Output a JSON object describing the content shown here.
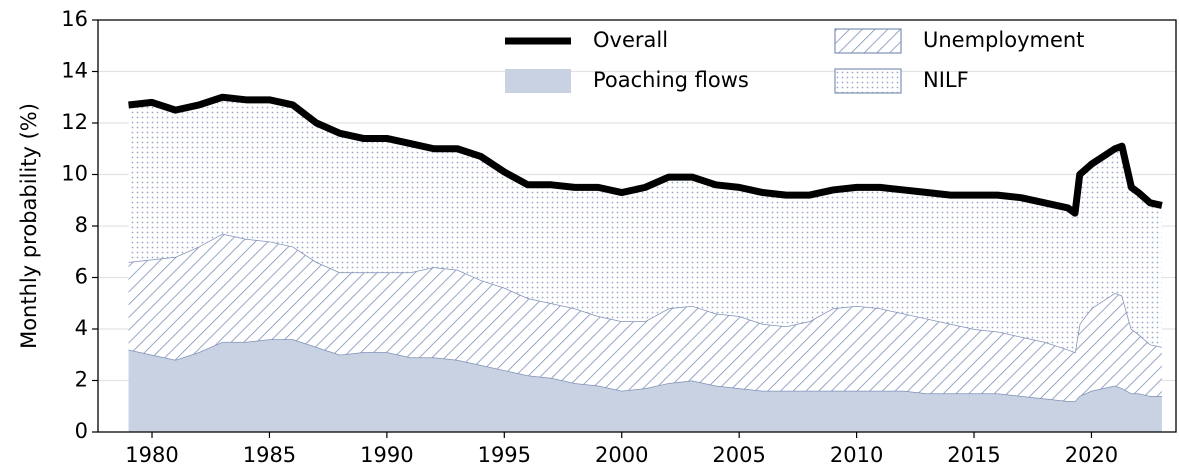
{
  "chart_data": {
    "type": "stacked_area",
    "ylabel": "Monthly probability (%)",
    "x": [
      1979,
      1980,
      1981,
      1982,
      1983,
      1984,
      1985,
      1986,
      1987,
      1988,
      1989,
      1990,
      1991,
      1992,
      1993,
      1994,
      1995,
      1996,
      1997,
      1998,
      1999,
      2000,
      2001,
      2002,
      2003,
      2004,
      2005,
      2006,
      2007,
      2008,
      2009,
      2010,
      2011,
      2012,
      2013,
      2014,
      2015,
      2016,
      2017,
      2018,
      2019,
      2019.3,
      2019.5,
      2020,
      2021,
      2021.3,
      2021.7,
      2022,
      2022.5,
      2023
    ],
    "series": [
      {
        "name": "Poaching flows",
        "color": "#7f91b8",
        "fill": "#c9d2e3",
        "pattern": "solid",
        "values": [
          3.2,
          3.0,
          2.8,
          3.1,
          3.5,
          3.5,
          3.6,
          3.6,
          3.3,
          3.0,
          3.1,
          3.1,
          2.9,
          2.9,
          2.8,
          2.6,
          2.4,
          2.2,
          2.1,
          1.9,
          1.8,
          1.6,
          1.7,
          1.9,
          2.0,
          1.8,
          1.7,
          1.6,
          1.6,
          1.6,
          1.6,
          1.6,
          1.6,
          1.6,
          1.5,
          1.5,
          1.5,
          1.5,
          1.4,
          1.3,
          1.2,
          1.2,
          1.4,
          1.6,
          1.8,
          1.7,
          1.5,
          1.5,
          1.4,
          1.4
        ]
      },
      {
        "name": "Unemployment",
        "color": "#7f91b8",
        "fill": "#ffffff",
        "pattern": "hatch",
        "values": [
          3.4,
          3.7,
          4.0,
          4.1,
          4.2,
          4.0,
          3.8,
          3.6,
          3.3,
          3.2,
          3.1,
          3.1,
          3.3,
          3.5,
          3.5,
          3.3,
          3.2,
          3.0,
          2.9,
          2.9,
          2.7,
          2.7,
          2.6,
          2.9,
          2.9,
          2.8,
          2.8,
          2.6,
          2.5,
          2.7,
          3.2,
          3.3,
          3.2,
          3.0,
          2.9,
          2.7,
          2.5,
          2.4,
          2.3,
          2.2,
          2.0,
          1.9,
          2.8,
          3.2,
          3.6,
          3.6,
          2.5,
          2.3,
          2.0,
          1.9
        ]
      },
      {
        "name": "NILF",
        "color": "#7f91b8",
        "fill": "#ffffff",
        "pattern": "dots",
        "values": [
          6.1,
          6.1,
          5.7,
          5.5,
          5.3,
          5.4,
          5.5,
          5.5,
          5.4,
          5.4,
          5.2,
          5.2,
          5.0,
          4.6,
          4.7,
          4.8,
          4.5,
          4.4,
          4.6,
          4.7,
          5.0,
          5.0,
          5.2,
          5.1,
          5.0,
          5.0,
          5.0,
          5.1,
          5.1,
          4.9,
          4.6,
          4.6,
          4.7,
          4.8,
          4.9,
          5.0,
          5.2,
          5.3,
          5.4,
          5.4,
          5.5,
          5.4,
          5.8,
          5.6,
          5.6,
          5.8,
          5.5,
          5.5,
          5.5,
          5.5
        ]
      },
      {
        "name": "Overall",
        "color": "#000000",
        "pattern": "line",
        "values": [
          12.7,
          12.8,
          12.5,
          12.7,
          13.0,
          12.9,
          12.9,
          12.7,
          12.0,
          11.6,
          11.4,
          11.4,
          11.2,
          11.0,
          11.0,
          10.7,
          10.1,
          9.6,
          9.6,
          9.5,
          9.5,
          9.3,
          9.5,
          9.9,
          9.9,
          9.6,
          9.5,
          9.3,
          9.2,
          9.2,
          9.4,
          9.5,
          9.5,
          9.4,
          9.3,
          9.2,
          9.2,
          9.2,
          9.1,
          8.9,
          8.7,
          8.5,
          10.0,
          10.4,
          11.0,
          11.1,
          9.5,
          9.3,
          8.9,
          8.8
        ]
      }
    ],
    "xlim": [
      1977.7,
      2023.6
    ],
    "xticks": [
      1980,
      1985,
      1990,
      1995,
      2000,
      2005,
      2010,
      2015,
      2020
    ],
    "ylim": [
      0,
      16
    ],
    "yticks": [
      0,
      2,
      4,
      6,
      8,
      10,
      12,
      14,
      16
    ],
    "grid": true,
    "legend": "upper right"
  }
}
